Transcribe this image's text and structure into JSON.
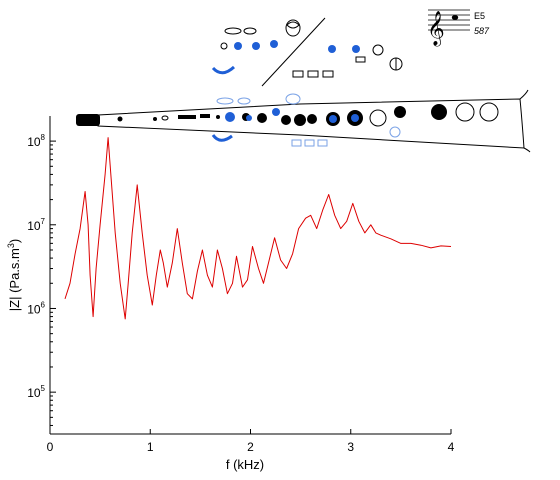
{
  "chart_data": {
    "type": "line",
    "xlabel": "f (kHz)",
    "ylabel_main": "|Z| (Pa.s.m",
    "ylabel_sup": "3",
    "ylabel_tail": ")",
    "xlim": [
      0,
      4
    ],
    "ylim_log10": [
      4.5,
      8.3
    ],
    "y_scale": "log",
    "x_ticks": [
      0,
      1,
      2,
      3,
      4
    ],
    "x_tick_labels": [
      "0",
      "1",
      "2",
      "3",
      "4"
    ],
    "y_ticks": [
      {
        "base": "10",
        "exp": "5",
        "value": 100000
      },
      {
        "base": "10",
        "exp": "6",
        "value": 1000000
      },
      {
        "base": "10",
        "exp": "7",
        "value": 10000000
      },
      {
        "base": "10",
        "exp": "8",
        "value": 100000000
      }
    ],
    "grid": false,
    "series": [
      {
        "color": "#dd0000",
        "points": [
          [
            0.15,
            1300000
          ],
          [
            0.2,
            2000000
          ],
          [
            0.25,
            4500000
          ],
          [
            0.3,
            9000000
          ],
          [
            0.35,
            25000000
          ],
          [
            0.38,
            10000000
          ],
          [
            0.4,
            2500000
          ],
          [
            0.43,
            800000
          ],
          [
            0.46,
            3000000
          ],
          [
            0.5,
            10000000
          ],
          [
            0.55,
            40000000
          ],
          [
            0.58,
            110000000
          ],
          [
            0.61,
            35000000
          ],
          [
            0.65,
            8000000
          ],
          [
            0.7,
            2000000
          ],
          [
            0.75,
            750000
          ],
          [
            0.78,
            2000000
          ],
          [
            0.82,
            8000000
          ],
          [
            0.87,
            30000000
          ],
          [
            0.92,
            8000000
          ],
          [
            0.97,
            2500000
          ],
          [
            1.02,
            1100000
          ],
          [
            1.06,
            2500000
          ],
          [
            1.1,
            5000000
          ],
          [
            1.13,
            3500000
          ],
          [
            1.17,
            1800000
          ],
          [
            1.22,
            3500000
          ],
          [
            1.27,
            9000000
          ],
          [
            1.32,
            3500000
          ],
          [
            1.37,
            1500000
          ],
          [
            1.42,
            1300000
          ],
          [
            1.47,
            2800000
          ],
          [
            1.52,
            5000000
          ],
          [
            1.57,
            2500000
          ],
          [
            1.62,
            1800000
          ],
          [
            1.67,
            5000000
          ],
          [
            1.72,
            3000000
          ],
          [
            1.77,
            1500000
          ],
          [
            1.82,
            2000000
          ],
          [
            1.86,
            4200000
          ],
          [
            1.92,
            1800000
          ],
          [
            1.97,
            2200000
          ],
          [
            2.02,
            5500000
          ],
          [
            2.08,
            3000000
          ],
          [
            2.13,
            2000000
          ],
          [
            2.18,
            3500000
          ],
          [
            2.24,
            7000000
          ],
          [
            2.3,
            3800000
          ],
          [
            2.36,
            3000000
          ],
          [
            2.42,
            4500000
          ],
          [
            2.48,
            9000000
          ],
          [
            2.55,
            12000000
          ],
          [
            2.6,
            13000000
          ],
          [
            2.66,
            9000000
          ],
          [
            2.72,
            15000000
          ],
          [
            2.78,
            23000000
          ],
          [
            2.84,
            13000000
          ],
          [
            2.9,
            9000000
          ],
          [
            2.96,
            11000000
          ],
          [
            3.02,
            18000000
          ],
          [
            3.08,
            11000000
          ],
          [
            3.14,
            8000000
          ],
          [
            3.2,
            10000000
          ],
          [
            3.25,
            8000000
          ],
          [
            3.3,
            7500000
          ],
          [
            3.4,
            6800000
          ],
          [
            3.5,
            6000000
          ],
          [
            3.6,
            6000000
          ],
          [
            3.7,
            5700000
          ],
          [
            3.8,
            5300000
          ],
          [
            3.9,
            5600000
          ],
          [
            4.0,
            5500000
          ]
        ]
      }
    ]
  },
  "note": {
    "name": "E5",
    "frequency": "587"
  }
}
